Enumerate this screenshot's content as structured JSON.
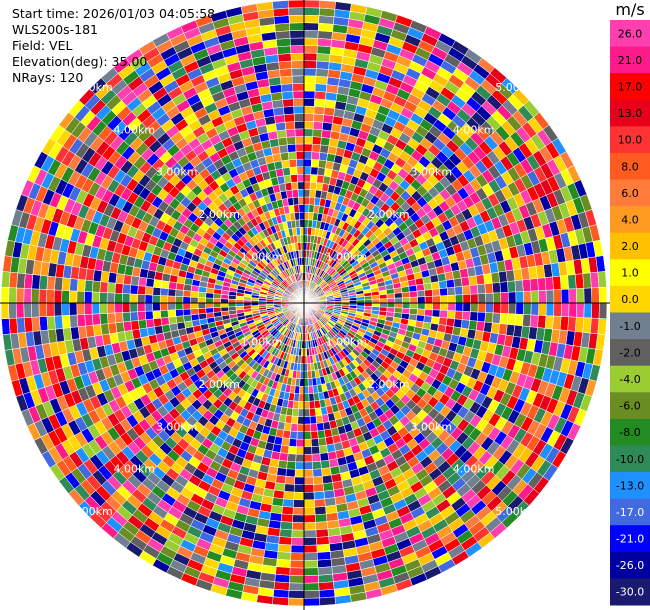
{
  "meta": {
    "start_time": "Start time: 2026/01/03 04:05:58",
    "instrument": "WLS200s-181",
    "field": "Field: VEL",
    "elevation": "Elevation(deg): 35.00",
    "nrays": "NRays: 120"
  },
  "chart_data": {
    "type": "heatmap",
    "projection": "polar-ppi",
    "nrays": 120,
    "range_rings_km": [
      "1.00km",
      "2.00km",
      "3.00km",
      "4.00km",
      "5.00km"
    ],
    "colorbar": {
      "unit": "m/s",
      "ticks": [
        "26.0",
        "21.0",
        "17.0",
        "13.0",
        "10.0",
        "8.0",
        "6.0",
        "4.0",
        "2.0",
        "1.0",
        "0.0",
        "-1.0",
        "-2.0",
        "-4.0",
        "-6.0",
        "-8.0",
        "-10.0",
        "-13.0",
        "-17.0",
        "-21.0",
        "-26.0",
        "-30.0"
      ],
      "colors": [
        "#ff3eb0",
        "#ff1a8c",
        "#ff0000",
        "#e8001a",
        "#ff3333",
        "#ff5a1f",
        "#ff7b3b",
        "#ff9a20",
        "#ffc000",
        "#ffff00",
        "#ffd700",
        "#708090",
        "#606060",
        "#9acd32",
        "#6b8e23",
        "#228b22",
        "#2e8b57",
        "#1e90ff",
        "#4169e1",
        "#0000ff",
        "#0000a0",
        "#191970"
      ]
    }
  }
}
